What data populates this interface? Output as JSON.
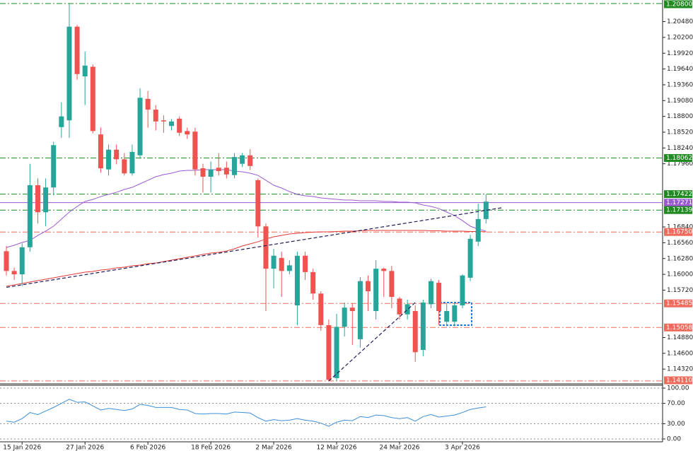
{
  "chart_data": [
    {
      "type": "candlestick",
      "categories": [
        null,
        null,
        "15 Jan 2026",
        null,
        null,
        null,
        null,
        null,
        null,
        null,
        "27 Jan 2026",
        null,
        null,
        null,
        null,
        null,
        null,
        null,
        "6 Feb 2026",
        null,
        null,
        null,
        null,
        null,
        null,
        null,
        "18 Feb 2026",
        null,
        null,
        null,
        null,
        null,
        null,
        null,
        "2 Mar 2026",
        null,
        null,
        null,
        null,
        null,
        null,
        null,
        "12 Mar 2026",
        null,
        null,
        null,
        null,
        null,
        null,
        null,
        "24 Mar 2026",
        null,
        null,
        null,
        null,
        null,
        null,
        null,
        "3 Apr 2026",
        null,
        null,
        null
      ],
      "open": [
        1.1641,
        1.1606,
        1.16,
        1.1648,
        1.1758,
        1.171,
        1.1754,
        1.1861,
        1.1873,
        1.2039,
        1.1951,
        1.1968,
        1.1848,
        1.1786,
        1.1821,
        1.1804,
        1.1779,
        1.1811,
        1.1911,
        1.1892,
        1.1873,
        1.1863,
        1.1876,
        1.1854,
        1.1853,
        1.1788,
        1.1773,
        1.1789,
        1.1789,
        1.1776,
        1.1796,
        1.1811,
        1.1767,
        1.1685,
        1.161,
        1.1629,
        1.1606,
        1.1545,
        1.1633,
        1.1604,
        1.1566,
        1.151,
        1.1416,
        1.1507,
        1.1541,
        1.1485,
        1.1588,
        1.1535,
        1.161,
        1.1606,
        1.1557,
        1.1529,
        1.1535,
        1.1466,
        1.1547,
        1.1585,
        1.1516,
        1.1516,
        1.1545,
        1.1594,
        1.1658,
        1.1698
      ],
      "high": [
        1.165,
        1.1612,
        1.1655,
        1.1796,
        1.177,
        1.177,
        1.1835,
        1.1905,
        1.208,
        1.2042,
        1.1995,
        1.1972,
        1.186,
        1.183,
        1.183,
        1.1815,
        1.183,
        1.193,
        1.1925,
        1.19,
        1.1882,
        1.1875,
        1.188,
        1.186,
        1.186,
        1.1796,
        1.18,
        1.1815,
        1.18,
        1.1815,
        1.1815,
        1.1822,
        1.177,
        1.169,
        1.1645,
        1.164,
        1.1625,
        1.164,
        1.164,
        1.161,
        1.157,
        1.152,
        1.153,
        1.155,
        1.1548,
        1.1595,
        1.1598,
        1.1625,
        1.1612,
        1.1615,
        1.156,
        1.1555,
        1.1545,
        1.1555,
        1.1592,
        1.159,
        1.1548,
        1.155,
        1.16,
        1.167,
        1.1725,
        1.1742
      ],
      "low": [
        1.1598,
        1.159,
        1.1579,
        1.164,
        1.169,
        1.1685,
        1.174,
        1.1842,
        1.1842,
        1.1945,
        1.19,
        1.185,
        1.178,
        1.1775,
        1.1795,
        1.1775,
        1.1775,
        1.1805,
        1.186,
        1.1855,
        1.1851,
        1.1855,
        1.1845,
        1.184,
        1.1775,
        1.1745,
        1.1745,
        1.1775,
        1.177,
        1.177,
        1.179,
        1.1785,
        1.1665,
        1.1535,
        1.1575,
        1.156,
        1.16,
        1.151,
        1.159,
        1.1555,
        1.15,
        1.1411,
        1.1411,
        1.149,
        1.1475,
        1.147,
        1.1535,
        1.152,
        1.156,
        1.154,
        1.152,
        1.152,
        1.1445,
        1.1455,
        1.154,
        1.151,
        1.1508,
        1.1508,
        1.154,
        1.1588,
        1.165,
        1.169
      ],
      "close": [
        1.1606,
        1.16,
        1.1648,
        1.1758,
        1.171,
        1.1754,
        1.1829,
        1.188,
        1.2039,
        1.1955,
        1.197,
        1.1854,
        1.1788,
        1.1821,
        1.1804,
        1.1779,
        1.1817,
        1.1913,
        1.1892,
        1.1871,
        1.1871,
        1.1871,
        1.1851,
        1.1848,
        1.1786,
        1.1773,
        1.1786,
        1.1783,
        1.1777,
        1.1808,
        1.1811,
        1.1792,
        1.1685,
        1.161,
        1.1633,
        1.1606,
        1.1616,
        1.1633,
        1.1604,
        1.1566,
        1.151,
        1.1413,
        1.1507,
        1.1541,
        1.1535,
        1.1588,
        1.157,
        1.161,
        1.1606,
        1.156,
        1.1529,
        1.1547,
        1.1462,
        1.155,
        1.1588,
        1.1535,
        1.1535,
        1.1545,
        1.1598,
        1.1663,
        1.1698,
        1.1729
      ],
      "up_color": "#26a69a",
      "down_color": "#ef5350",
      "series": [
        {
          "color": "#9b59d0",
          "values": [
            1.16477,
            1.16515,
            1.16565,
            1.16602,
            1.1669,
            1.16765,
            1.16853,
            1.16978,
            1.17104,
            1.17204,
            1.17292,
            1.17329,
            1.17379,
            1.17417,
            1.17454,
            1.17505,
            1.17542,
            1.17605,
            1.17667,
            1.1773,
            1.17768,
            1.17793,
            1.1783,
            1.17843,
            1.17843,
            1.17855,
            1.17855,
            1.17855,
            1.17855,
            1.1783,
            1.17818,
            1.17793,
            1.17755,
            1.17667,
            1.1758,
            1.1753,
            1.17467,
            1.17417,
            1.17392,
            1.17379,
            1.17354,
            1.17342,
            1.17329,
            1.17317,
            1.17317,
            1.17304,
            1.17304,
            1.17304,
            1.17292,
            1.17292,
            1.17279,
            1.17279,
            1.17267,
            1.17229,
            1.17204,
            1.17166,
            1.17104,
            1.17041,
            1.16953,
            1.16853,
            1.16803,
            1.16765
          ]
        },
        {
          "color": "#e53935",
          "values": [
            1.15788,
            1.15813,
            1.15838,
            1.15863,
            1.15888,
            1.15913,
            1.15938,
            1.15963,
            1.15988,
            1.16014,
            1.16039,
            1.16051,
            1.16076,
            1.16089,
            1.16114,
            1.16126,
            1.16151,
            1.16164,
            1.16189,
            1.16201,
            1.16227,
            1.16252,
            1.16277,
            1.16302,
            1.16327,
            1.16352,
            1.16377,
            1.1639,
            1.16414,
            1.16452,
            1.16502,
            1.1654,
            1.16577,
            1.16627,
            1.16665,
            1.1669,
            1.16715,
            1.16728,
            1.1674,
            1.16748,
            1.16753,
            1.16753,
            1.1676,
            1.16765,
            1.16765,
            1.16772,
            1.16778,
            1.16778,
            1.16778,
            1.16778,
            1.16778,
            1.16778,
            1.16778,
            1.16778,
            1.16772,
            1.16772,
            1.16765,
            1.16765,
            1.16765,
            1.1676,
            1.1676,
            1.16753
          ]
        }
      ],
      "ylim": [
        1.14059,
        1.20863
      ],
      "yticks": [
        {
          "value": 1.2048,
          "label": "1.20480"
        },
        {
          "value": 1.202,
          "label": "1.20200"
        },
        {
          "value": 1.1992,
          "label": "1.19920"
        },
        {
          "value": 1.1964,
          "label": "1.19640"
        },
        {
          "value": 1.1936,
          "label": "1.19360"
        },
        {
          "value": 1.1908,
          "label": "1.19080"
        },
        {
          "value": 1.188,
          "label": "1.18800"
        },
        {
          "value": 1.1852,
          "label": "1.18520"
        },
        {
          "value": 1.1824,
          "label": "1.18240"
        },
        {
          "value": 1.1796,
          "label": "1.17960"
        },
        {
          "value": 1.1684,
          "label": "1.16840"
        },
        {
          "value": 1.1656,
          "label": "1.16560"
        },
        {
          "value": 1.1628,
          "label": "1.16280"
        },
        {
          "value": 1.16,
          "label": "1.16000"
        },
        {
          "value": 1.1572,
          "label": "1.15720"
        },
        {
          "value": 1.1488,
          "label": "1.14880"
        },
        {
          "value": 1.146,
          "label": "1.14600"
        },
        {
          "value": 1.1432,
          "label": "1.14320"
        }
      ],
      "grid": false,
      "levels": [
        {
          "value": 1.208,
          "label": "1.20800",
          "color": "#1f8a1f",
          "style": "dashdot"
        },
        {
          "value": 1.18062,
          "label": "1.18062",
          "color": "#1f8a1f",
          "style": "dashdot"
        },
        {
          "value": 1.17422,
          "label": "1.17422",
          "color": "#1f8a1f",
          "style": "dashdot"
        },
        {
          "value": 1.17271,
          "label": "1.17271",
          "color": "#9b59d0",
          "style": "solid"
        },
        {
          "value": 1.17139,
          "label": "1.17139",
          "color": "#1f8a1f",
          "style": "dashdot"
        },
        {
          "value": 1.1675,
          "label": "1.16750",
          "color": "#ef6a5a",
          "style": "dashdot"
        },
        {
          "value": 1.15485,
          "label": "1.15485",
          "color": "#ef6a5a",
          "style": "dashdot"
        },
        {
          "value": 1.15058,
          "label": "1.15058",
          "color": "#ef6a5a",
          "style": "dashdot"
        },
        {
          "value": 1.1411,
          "label": "1.14110",
          "color": "#ef6a5a",
          "style": "dashdot"
        }
      ],
      "trendlines": [
        {
          "from": [
            0,
            1.1577
          ],
          "to": [
            63,
            1.1718
          ],
          "color": "#1c1c5a"
        },
        {
          "from": [
            41,
            1.1411
          ],
          "to": [
            52,
            1.155
          ],
          "color": "#1c1c5a"
        }
      ]
    },
    {
      "type": "line",
      "values": [
        35,
        33,
        40,
        52,
        48,
        55,
        62,
        70,
        78,
        72,
        73,
        65,
        57,
        60,
        58,
        56,
        59,
        68,
        66,
        62,
        62,
        62,
        58,
        57,
        50,
        49,
        50,
        50,
        49,
        53,
        52,
        51,
        42,
        35,
        38,
        36,
        37,
        40,
        37,
        35,
        31,
        25,
        33,
        37,
        36,
        44,
        42,
        47,
        46,
        42,
        40,
        42,
        35,
        44,
        48,
        43,
        45,
        47,
        52,
        58,
        61,
        63
      ],
      "color": "#3d8fd6",
      "ylim": [
        -5.6,
        105.6
      ],
      "yticks": [
        {
          "value": 100,
          "label": "100.00"
        },
        {
          "value": 70,
          "label": "70.00"
        },
        {
          "value": 30,
          "label": "30.00"
        },
        {
          "value": 0,
          "label": "0.00"
        }
      ],
      "grid": true
    }
  ]
}
